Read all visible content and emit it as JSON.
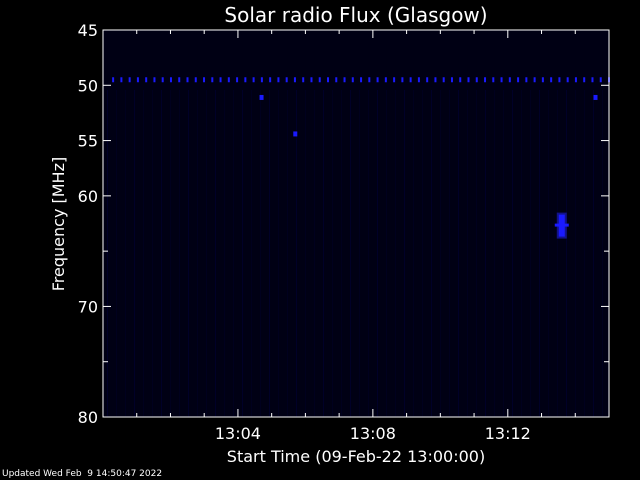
{
  "chart_data": {
    "type": "heatmap",
    "title": "Solar radio Flux (Glasgow)",
    "xlabel": "Start Time (09-Feb-22 13:00:00)",
    "ylabel": "Frequency [MHz]",
    "ylim": [
      45,
      80
    ],
    "y_inverted": true,
    "y_ticks": [
      45,
      50,
      55,
      60,
      70,
      80
    ],
    "y_tick_labels": [
      "45",
      "50",
      "55",
      "60",
      "70",
      "80"
    ],
    "x_range_minutes": [
      0,
      15
    ],
    "x_ticks": [
      4,
      8,
      12
    ],
    "x_tick_labels": [
      "13:04",
      "13:08",
      "13:12"
    ],
    "grid": false,
    "colors": {
      "background": "#000000",
      "plot_bg": "#000014",
      "feature": "#1a1aff",
      "axes": "#ffffff"
    },
    "features": [
      {
        "name": "band",
        "freq_mhz": 49.5,
        "minute_start": 0.3,
        "minute_end": 15
      },
      {
        "name": "spot",
        "freq_mhz": 51.1,
        "minute": 4.7
      },
      {
        "name": "spot",
        "freq_mhz": 54.4,
        "minute": 5.7
      },
      {
        "name": "spot",
        "freq_mhz": 51.1,
        "minute": 14.6
      },
      {
        "name": "burst",
        "freq_mhz": 62.6,
        "minute": 13.6
      }
    ]
  },
  "footer": {
    "updated": "Updated Wed Feb  9 14:50:47 2022"
  }
}
